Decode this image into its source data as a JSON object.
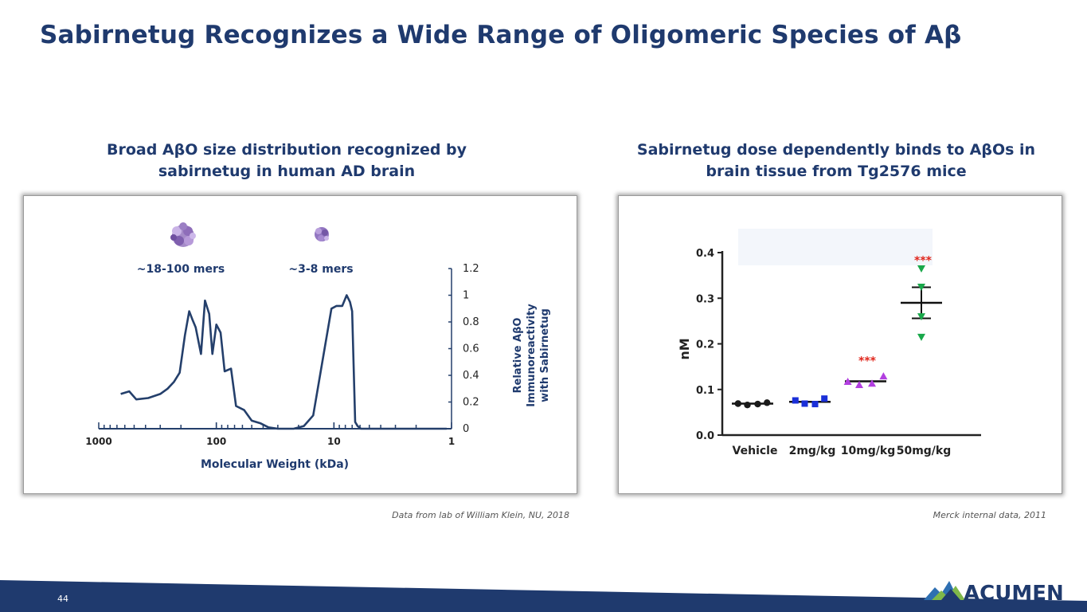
{
  "slide": {
    "title": "Sabirnetug Recognizes a Wide Range of Oligomeric Species of Aβ",
    "page_number": "44",
    "logo_text": "ACUMEN"
  },
  "left": {
    "subtitle_line1": "Broad AβO size distribution recognized by",
    "subtitle_line2": "sabirnetug in human AD brain",
    "caption": "Data from lab of William Klein, NU, 2018"
  },
  "right": {
    "subtitle_line1": "Sabirnetug dose dependently binds to AβOs in",
    "subtitle_line2": "brain tissue from Tg2576 mice",
    "caption": "Merck internal data, 2011"
  },
  "colors": {
    "navy": "#1f3a6e",
    "line": "#243f6b",
    "green": "#19a84a",
    "purple": "#b23fe0",
    "blue": "#1a2fd8",
    "red": "#e0261c"
  },
  "chart_data": [
    {
      "type": "line",
      "title": "",
      "xlabel": "Molecular Weight (kDa)",
      "ylabel_lines": [
        "Relative AβO",
        "Immunoreactivity",
        "with Sabirnetug"
      ],
      "x_scale": "log_reversed",
      "x_ticks": [
        "1000",
        "100",
        "10",
        "1"
      ],
      "y_ticks": [
        "0",
        "0.2",
        "0.4",
        "0.6",
        "0.8",
        "1",
        "1.2"
      ],
      "ylim": [
        0,
        1.2
      ],
      "annotations": [
        "~18-100 mers",
        "~3-8 mers"
      ],
      "x": [
        650,
        550,
        480,
        380,
        300,
        260,
        230,
        205,
        185,
        170,
        160,
        150,
        135,
        125,
        115,
        108,
        100,
        92,
        85,
        75,
        68,
        58,
        50,
        42,
        36,
        30,
        26,
        22,
        18,
        15,
        12,
        10.5,
        9.5,
        8.5,
        7.8,
        7.3,
        7,
        6.6,
        6.3,
        5.9,
        5.5,
        5,
        4,
        3,
        2,
        1.3,
        1.1
      ],
      "values": [
        0.26,
        0.28,
        0.22,
        0.23,
        0.26,
        0.3,
        0.35,
        0.42,
        0.7,
        0.88,
        0.82,
        0.76,
        0.56,
        0.96,
        0.86,
        0.56,
        0.78,
        0.72,
        0.43,
        0.45,
        0.17,
        0.14,
        0.06,
        0.04,
        0.01,
        0.0,
        0.0,
        0.0,
        0.02,
        0.1,
        0.6,
        0.9,
        0.92,
        0.92,
        1.0,
        0.95,
        0.88,
        0.05,
        0.02,
        0.0,
        0.0,
        0.0,
        0.0,
        0.0,
        0.0,
        0.0,
        0.0
      ]
    },
    {
      "type": "scatter",
      "ylabel": "nM",
      "ylim": [
        0,
        0.4
      ],
      "y_ticks": [
        "0.0",
        "0.1",
        "0.2",
        "0.3",
        "0.4"
      ],
      "categories": [
        "Vehicle",
        "2mg/kg",
        "10mg/kg",
        "50mg/kg"
      ],
      "series": [
        {
          "name": "Vehicle",
          "marker": "circle",
          "color": "#1a1a1a",
          "values": [
            0.069,
            0.066,
            0.068,
            0.071
          ],
          "mean": 0.069,
          "sem": 0.0
        },
        {
          "name": "2mg/kg",
          "marker": "square",
          "color": "#1a2fd8",
          "values": [
            0.076,
            0.069,
            0.068,
            0.08
          ],
          "mean": 0.073,
          "sem": 0.0
        },
        {
          "name": "10mg/kg",
          "marker": "triangle-up",
          "color": "#b23fe0",
          "values": [
            0.117,
            0.11,
            0.113,
            0.129
          ],
          "mean": 0.118,
          "sem": 0.0
        },
        {
          "name": "50mg/kg",
          "marker": "triangle-down",
          "color": "#19a84a",
          "values": [
            0.365,
            0.325,
            0.26,
            0.215
          ],
          "mean": 0.29,
          "sem": 0.034
        }
      ],
      "significance": [
        {
          "category": "10mg/kg",
          "label": "***",
          "y": 0.165
        },
        {
          "category": "50mg/kg",
          "label": "***",
          "y": 0.385
        }
      ]
    }
  ]
}
